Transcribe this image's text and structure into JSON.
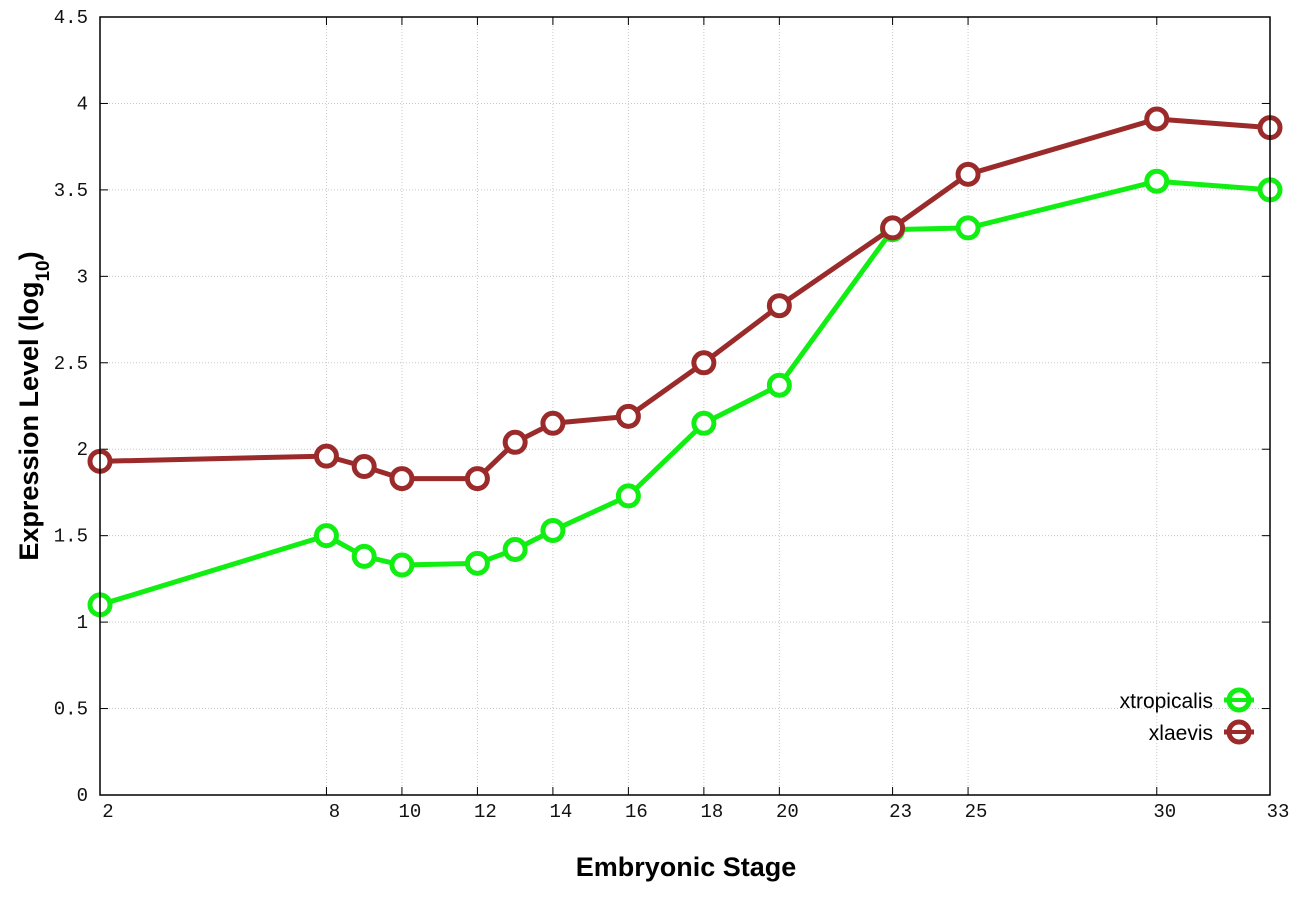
{
  "chart_data": {
    "type": "line",
    "title": "",
    "xlabel": "Embryonic Stage",
    "ylabel_main": "Expression Level (log",
    "ylabel_sub": "10",
    "ylabel_close": ")",
    "xlim": [
      2,
      33
    ],
    "ylim": [
      0,
      4.5
    ],
    "x_ticks": [
      2,
      8,
      10,
      12,
      14,
      16,
      18,
      20,
      23,
      25,
      30,
      33
    ],
    "y_ticks": [
      0,
      0.5,
      1,
      1.5,
      2,
      2.5,
      3,
      3.5,
      4,
      4.5
    ],
    "y_tick_labels": [
      "0",
      "0.5",
      "1",
      "1.5",
      "2",
      "2.5",
      "3",
      "3.5",
      "4",
      "4.5"
    ],
    "grid": true,
    "legend_position": "bottom-right",
    "x": [
      2,
      8,
      9,
      10,
      12,
      13,
      14,
      16,
      18,
      20,
      23,
      25,
      30,
      33
    ],
    "series": [
      {
        "name": "xtropicalis",
        "color": "#11ee11",
        "values": [
          1.1,
          1.5,
          1.38,
          1.33,
          1.34,
          1.42,
          1.53,
          1.73,
          2.15,
          2.37,
          3.27,
          3.28,
          3.55,
          3.5
        ]
      },
      {
        "name": "xlaevis",
        "color": "#9b2a2a",
        "values": [
          1.93,
          1.96,
          1.9,
          1.83,
          1.83,
          2.04,
          2.15,
          2.19,
          2.5,
          2.83,
          3.28,
          3.59,
          3.91,
          3.86
        ]
      }
    ]
  }
}
